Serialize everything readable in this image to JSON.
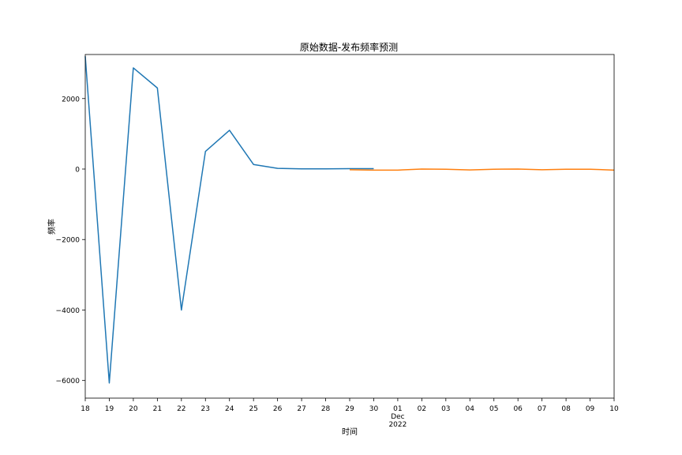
{
  "chart_data": {
    "type": "line",
    "title": "原始数据-发布频率预测",
    "xlabel": "时间",
    "ylabel": "频率",
    "xlim": [
      "2022-11-18",
      "2022-12-10"
    ],
    "ylim": [
      -6500,
      3250
    ],
    "x_ticks": [
      {
        "date": "2022-11-18",
        "label": "18"
      },
      {
        "date": "2022-11-19",
        "label": "19"
      },
      {
        "date": "2022-11-20",
        "label": "20"
      },
      {
        "date": "2022-11-21",
        "label": "21"
      },
      {
        "date": "2022-11-22",
        "label": "22"
      },
      {
        "date": "2022-11-23",
        "label": "23"
      },
      {
        "date": "2022-11-24",
        "label": "24"
      },
      {
        "date": "2022-11-25",
        "label": "25"
      },
      {
        "date": "2022-11-26",
        "label": "26"
      },
      {
        "date": "2022-11-27",
        "label": "27"
      },
      {
        "date": "2022-11-28",
        "label": "28"
      },
      {
        "date": "2022-11-29",
        "label": "29"
      },
      {
        "date": "2022-11-30",
        "label": "30"
      },
      {
        "date": "2022-12-01",
        "label": "01",
        "sub": [
          "Dec",
          "2022"
        ]
      },
      {
        "date": "2022-12-02",
        "label": "02"
      },
      {
        "date": "2022-12-03",
        "label": "03"
      },
      {
        "date": "2022-12-04",
        "label": "04"
      },
      {
        "date": "2022-12-05",
        "label": "05"
      },
      {
        "date": "2022-12-06",
        "label": "06"
      },
      {
        "date": "2022-12-07",
        "label": "07"
      },
      {
        "date": "2022-12-08",
        "label": "08"
      },
      {
        "date": "2022-12-09",
        "label": "09"
      },
      {
        "date": "2022-12-10",
        "label": "10"
      }
    ],
    "y_ticks": [
      2000,
      0,
      -2000,
      -4000,
      -6000
    ],
    "y_tick_labels": [
      "2000",
      "0",
      "−2000",
      "−4000",
      "−6000"
    ],
    "grid": false,
    "series": [
      {
        "color": "#1f77b4",
        "points": [
          {
            "x": "2022-11-18",
            "y": 3200
          },
          {
            "x": "2022-11-19",
            "y": -6070
          },
          {
            "x": "2022-11-20",
            "y": 2870
          },
          {
            "x": "2022-11-21",
            "y": 2300
          },
          {
            "x": "2022-11-22",
            "y": -4000
          },
          {
            "x": "2022-11-23",
            "y": 500
          },
          {
            "x": "2022-11-24",
            "y": 1100
          },
          {
            "x": "2022-11-25",
            "y": 130
          },
          {
            "x": "2022-11-26",
            "y": 20
          },
          {
            "x": "2022-11-27",
            "y": 5
          },
          {
            "x": "2022-11-28",
            "y": 5
          },
          {
            "x": "2022-11-29",
            "y": 10
          },
          {
            "x": "2022-11-30",
            "y": 10
          }
        ]
      },
      {
        "color": "#ff7f0e",
        "points": [
          {
            "x": "2022-11-29",
            "y": -20
          },
          {
            "x": "2022-11-30",
            "y": -30
          },
          {
            "x": "2022-12-01",
            "y": -30
          },
          {
            "x": "2022-12-02",
            "y": 0
          },
          {
            "x": "2022-12-03",
            "y": -5
          },
          {
            "x": "2022-12-04",
            "y": -25
          },
          {
            "x": "2022-12-05",
            "y": -5
          },
          {
            "x": "2022-12-06",
            "y": 0
          },
          {
            "x": "2022-12-07",
            "y": -20
          },
          {
            "x": "2022-12-08",
            "y": -5
          },
          {
            "x": "2022-12-09",
            "y": -5
          },
          {
            "x": "2022-12-10",
            "y": -30
          }
        ]
      }
    ]
  }
}
